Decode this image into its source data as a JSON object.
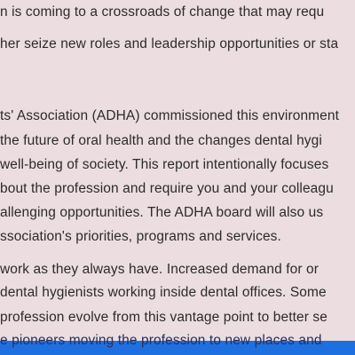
{
  "document": {
    "lines": [
      "n is coming to a crossroads of change that may requ",
      "her seize new roles and leadership opportunities or sta",
      "ts' Association (ADHA) commissioned this environment",
      "the future of oral health and the changes dental hygi",
      "well-being of society.  This report intentionally focuses",
      "bout the profession and require you and your colleagu",
      "allenging opportunities.  The ADHA board will also us",
      "ssociation's priorities, programs and services.",
      "work as they always have.  Increased demand for or",
      "dental hygienists working inside dental offices.  Some",
      "profession evolve from this vantage point to better se",
      "e pioneers moving the profession to new places and"
    ],
    "highlight_color": "#1e6fe0",
    "background_color": "#ecdde0"
  }
}
